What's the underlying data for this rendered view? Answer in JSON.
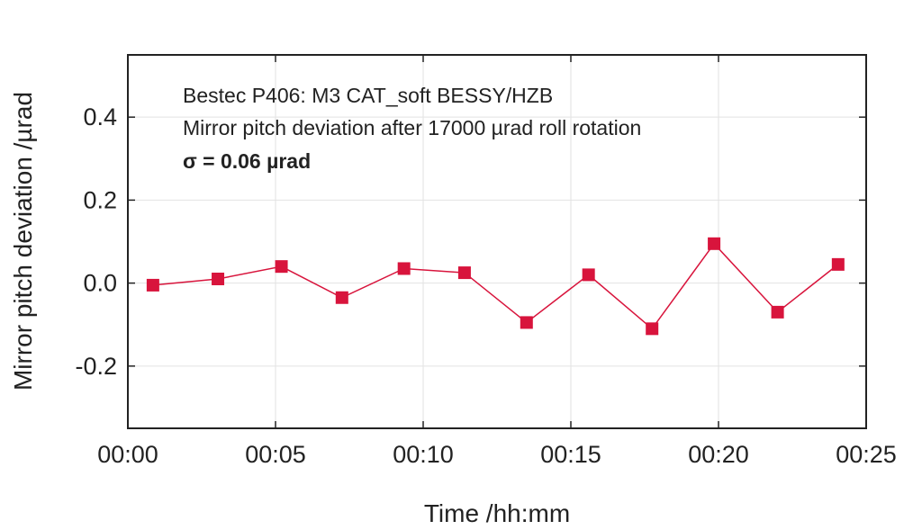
{
  "chart_data": {
    "type": "line",
    "xlabel": "Time /hh:mm",
    "ylabel": "Mirror pitch deviation /µrad",
    "annotations": [
      "Bestec P406: M3 CAT_soft BESSY/HZB",
      "Mirror pitch deviation after 17000 µrad roll rotation",
      "σ = 0.06 µrad"
    ],
    "x_unit": "minutes",
    "xlim": [
      0,
      25
    ],
    "ylim": [
      -0.35,
      0.55
    ],
    "x_ticks": [
      0,
      5,
      10,
      15,
      20,
      25
    ],
    "x_tick_labels": [
      "00:00",
      "00:05",
      "00:10",
      "00:15",
      "00:20",
      "00:25"
    ],
    "y_ticks": [
      -0.2,
      0.0,
      0.2,
      0.4
    ],
    "y_tick_labels": [
      "-0.2",
      "0.0",
      "0.2",
      "0.4"
    ],
    "grid": true,
    "series": [
      {
        "color": "#d8143c",
        "marker": "square",
        "x": [
          0.85,
          3.05,
          5.2,
          7.25,
          9.35,
          11.4,
          13.5,
          15.6,
          17.75,
          19.85,
          22.0,
          24.05
        ],
        "y": [
          -0.005,
          0.01,
          0.04,
          -0.035,
          0.035,
          0.025,
          -0.095,
          0.02,
          -0.11,
          0.095,
          -0.07,
          0.045
        ]
      }
    ]
  }
}
